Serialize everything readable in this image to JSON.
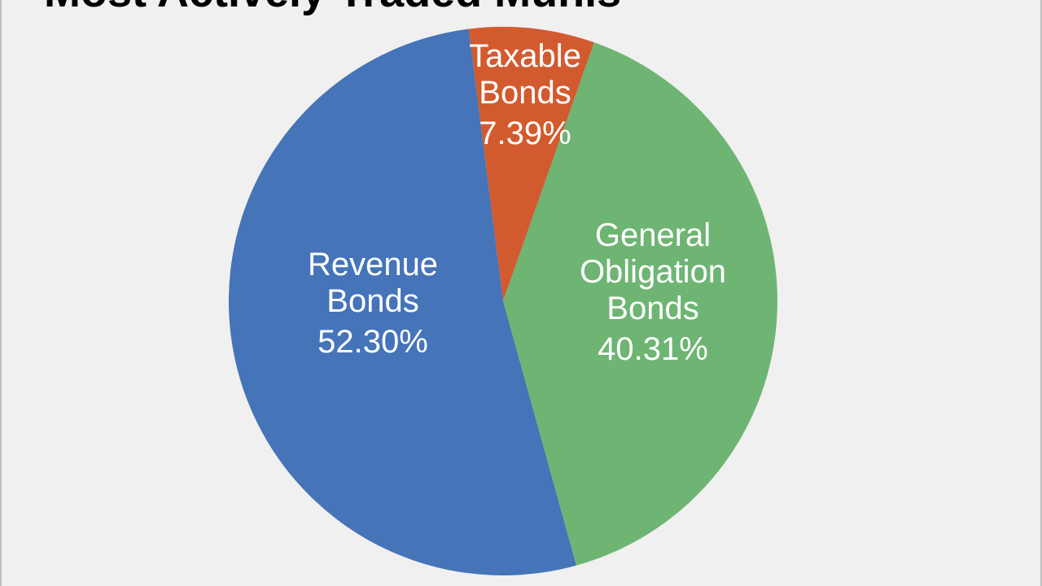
{
  "chart_data": {
    "type": "pie",
    "title": "Most Actively Traded Munis",
    "slices": [
      {
        "label_lines": [
          "Taxable",
          "Bonds"
        ],
        "value_label": "7.39%",
        "value": 7.39,
        "color": "#d15b2f"
      },
      {
        "label_lines": [
          "General",
          "Obligation",
          "Bonds"
        ],
        "value_label": "40.31%",
        "value": 40.31,
        "color": "#6eb573"
      },
      {
        "label_lines": [
          "Revenue",
          "Bonds"
        ],
        "value_label": "52.30%",
        "value": 52.3,
        "color": "#4574b8"
      }
    ]
  }
}
